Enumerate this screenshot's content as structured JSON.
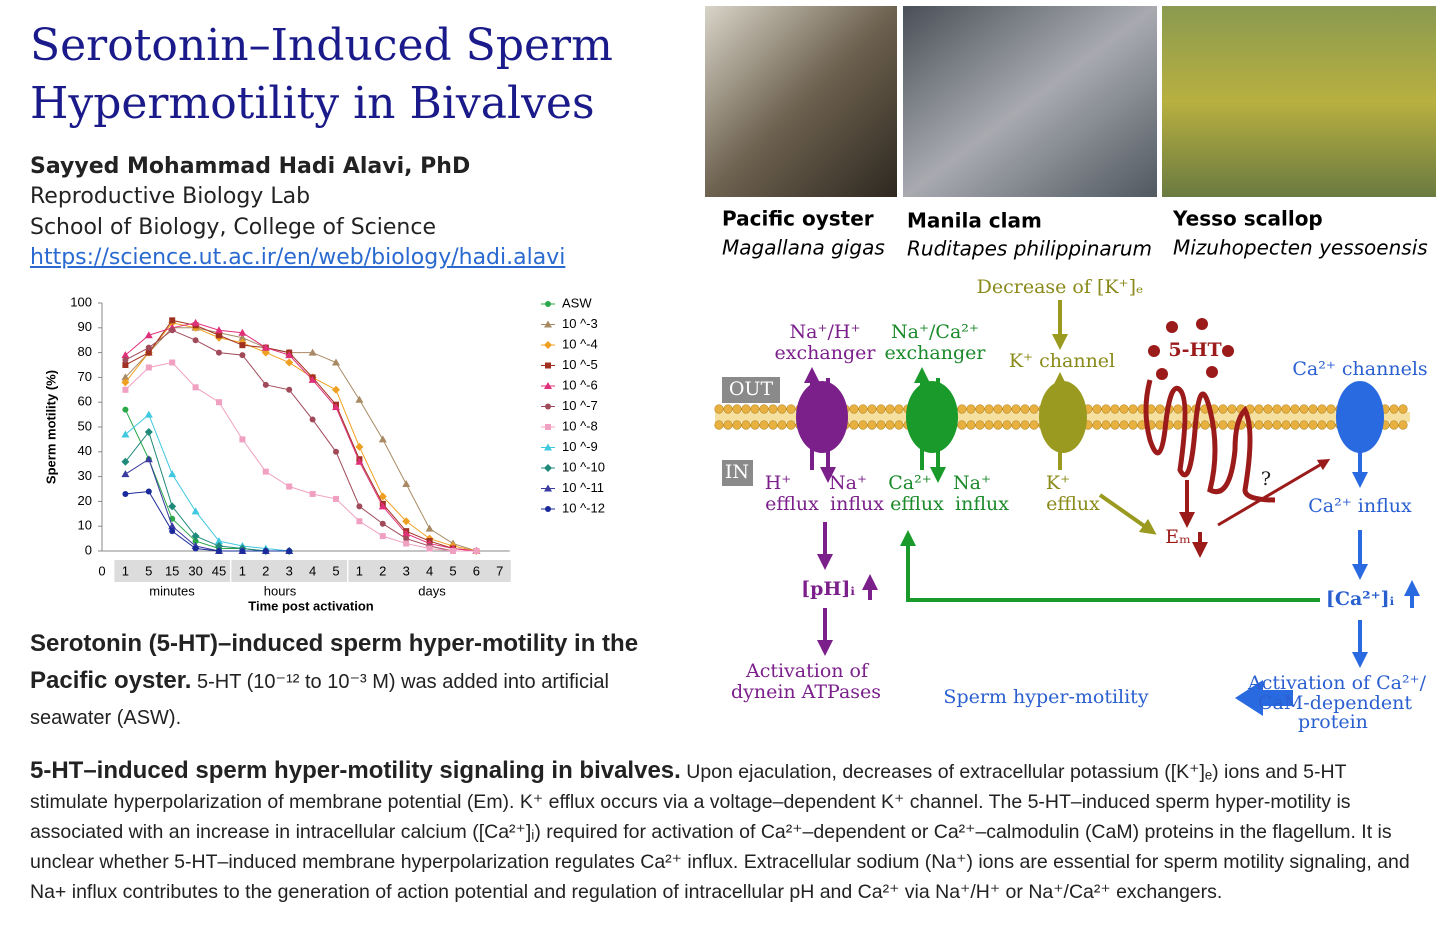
{
  "header": {
    "title": [
      "Serotonin–Induced Sperm",
      "Hypermotility in Bivalves"
    ],
    "author": "Sayyed Mohammad Hadi Alavi, PhD",
    "affiliation": [
      "Reproductive Biology Lab",
      "School of Biology, College of Science"
    ],
    "url": "https://science.ut.ac.ir/en/web/biology/hadi.alavi"
  },
  "photos": [
    {
      "name": "Pacific oyster",
      "species": "Magallana gigas"
    },
    {
      "name": "Manila clam",
      "species": "Ruditapes philippinarum"
    },
    {
      "name": "Yesso scallop",
      "species": "Mizuhopecten yessoensis"
    }
  ],
  "chart_data": {
    "type": "line",
    "ylabel": "Sperm motility (%)",
    "xlabel": "Time post activation",
    "groups": [
      "minutes",
      "hours",
      "days"
    ],
    "categories": [
      "0",
      "1",
      "5",
      "15",
      "30",
      "45",
      "1",
      "2",
      "3",
      "4",
      "5",
      "1",
      "2",
      "3",
      "4",
      "5",
      "6",
      "7"
    ],
    "ylim": [
      0,
      100
    ],
    "yticks": [
      0,
      10,
      20,
      30,
      40,
      50,
      60,
      70,
      80,
      90,
      100
    ],
    "series": [
      {
        "name": "ASW",
        "color": "#2aa84a",
        "marker": "circle",
        "values": [
          null,
          57,
          37,
          13,
          4,
          1,
          1,
          0,
          0,
          null,
          null,
          null,
          null,
          null,
          null,
          null,
          null,
          null
        ]
      },
      {
        "name": "10 ^-3",
        "color": "#a88a64",
        "marker": "triangle",
        "values": [
          null,
          70,
          80,
          90,
          90,
          88,
          86,
          82,
          80,
          80,
          76,
          61,
          45,
          27,
          9,
          3,
          0,
          null
        ]
      },
      {
        "name": "10 ^-4",
        "color": "#f0a020",
        "marker": "diamond",
        "values": [
          null,
          68,
          80,
          92,
          90,
          86,
          84,
          80,
          76,
          70,
          65,
          42,
          22,
          12,
          5,
          2,
          0,
          null
        ]
      },
      {
        "name": "10 ^-5",
        "color": "#a03020",
        "marker": "square",
        "values": [
          null,
          75,
          80,
          93,
          91,
          87,
          83,
          82,
          80,
          70,
          59,
          37,
          19,
          8,
          4,
          1,
          0,
          null
        ]
      },
      {
        "name": "10 ^-6",
        "color": "#e0307a",
        "marker": "triangle",
        "values": [
          null,
          79,
          87,
          90,
          92,
          89,
          88,
          82,
          79,
          69,
          58,
          36,
          18,
          7,
          3,
          1,
          0,
          null
        ]
      },
      {
        "name": "10 ^-7",
        "color": "#a04a5a",
        "marker": "circle",
        "values": [
          null,
          77,
          82,
          89,
          85,
          80,
          79,
          67,
          65,
          53,
          40,
          18,
          11,
          5,
          2,
          0,
          0,
          null
        ]
      },
      {
        "name": "10 ^-8",
        "color": "#f0a0c0",
        "marker": "square",
        "values": [
          null,
          65,
          74,
          76,
          66,
          60,
          45,
          32,
          26,
          23,
          21,
          12,
          6,
          3,
          1,
          0,
          0,
          null
        ]
      },
      {
        "name": "10 ^-9",
        "color": "#40c8e0",
        "marker": "triangle",
        "values": [
          null,
          47,
          55,
          31,
          16,
          4,
          2,
          1,
          0,
          null,
          null,
          null,
          null,
          null,
          null,
          null,
          null,
          null
        ]
      },
      {
        "name": "10 ^-10",
        "color": "#208a7a",
        "marker": "diamond",
        "values": [
          null,
          36,
          48,
          18,
          6,
          2,
          1,
          0,
          0,
          null,
          null,
          null,
          null,
          null,
          null,
          null,
          null,
          null
        ]
      },
      {
        "name": "10 ^-11",
        "color": "#3a3aa0",
        "marker": "triangle",
        "values": [
          null,
          31,
          37,
          10,
          2,
          0,
          0,
          0,
          0,
          null,
          null,
          null,
          null,
          null,
          null,
          null,
          null,
          null
        ]
      },
      {
        "name": "10 ^-12",
        "color": "#1a2a9a",
        "marker": "circle",
        "values": [
          null,
          23,
          24,
          8,
          1,
          0,
          0,
          0,
          0,
          null,
          null,
          null,
          null,
          null,
          null,
          null,
          null,
          null
        ]
      }
    ]
  },
  "chart_caption": {
    "title": "Serotonin (5-HT)–induced sperm hyper-motility in the Pacific oyster.",
    "text": " 5-HT (10⁻¹² to 10⁻³ M) was added into artificial seawater (ASW)."
  },
  "diagram": {
    "labels": [
      "Decrease of [K⁺]ₑ",
      "Na⁺/H⁺",
      "exchanger",
      "Na⁺/Ca²⁺",
      "exchanger",
      "K⁺ channel",
      "5-HT",
      "Ca²⁺ channels",
      "OUT",
      "IN",
      "H⁺",
      "efflux",
      "Na⁺",
      "influx",
      "Ca²⁺",
      "efflux",
      "Na⁺",
      "influx",
      "K⁺",
      "efflux",
      "Eₘ",
      "?",
      "Ca²⁺ influx",
      "[pH]ᵢ",
      "[Ca²⁺]ᵢ",
      "Activation of",
      "dynein ATPases",
      "Sperm hyper-motility",
      "Activation of Ca²⁺/",
      "CaM-dependent",
      "protein"
    ]
  },
  "summary": {
    "title": "5-HT–induced sperm hyper-motility signaling in bivalves.",
    "text": " Upon ejaculation, decreases of extracellular potassium ([K⁺]ₑ) ions and 5-HT stimulate hyperpolarization of membrane potential (Em). K⁺ efflux occurs via a voltage–dependent K⁺ channel. The 5-HT–induced sperm hyper-motility is associated with an increase in intracellular calcium ([Ca²⁺]ᵢ) required for activation of Ca²⁺–dependent or Ca²⁺–calmodulin (CaM) proteins in the flagellum. It is unclear whether 5-HT–induced membrane hyperpolarization regulates Ca²⁺ influx. Extracellular sodium (Na⁺) ions are essential for sperm motility signaling, and Na+ influx contributes to the generation of action potential and regulation of intracellular pH and Ca²⁺ via Na⁺/H⁺ or Na⁺/Ca²⁺ exchangers."
  }
}
